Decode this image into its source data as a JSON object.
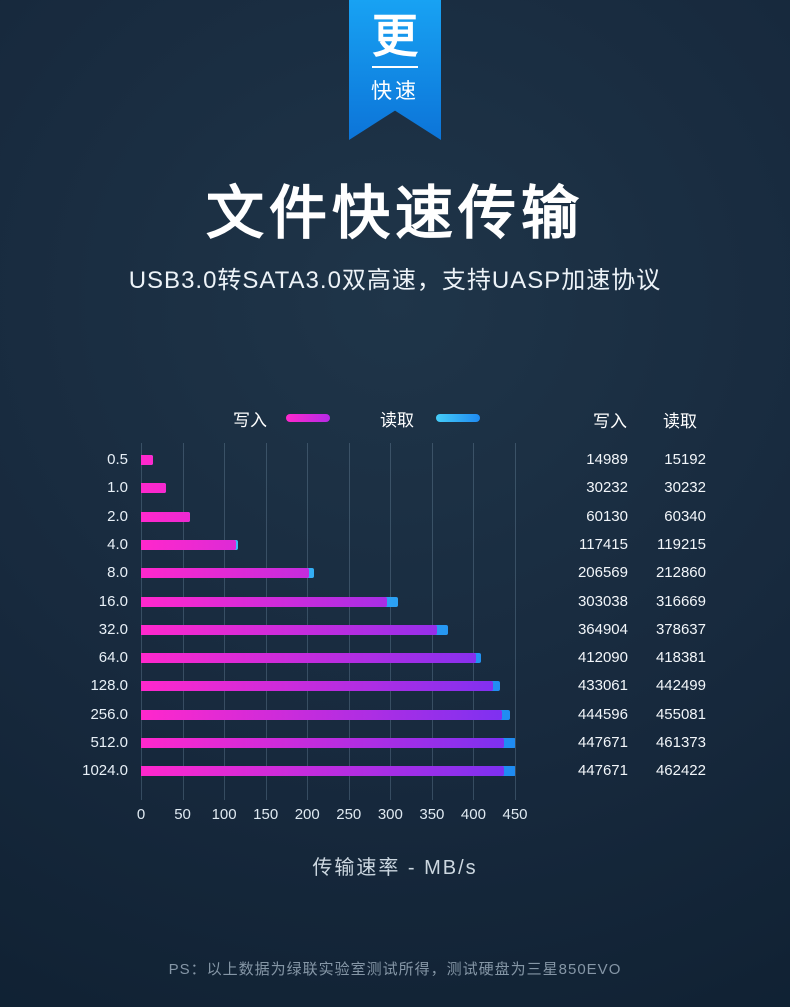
{
  "ribbon": {
    "big_char": "更",
    "small_label": "快速"
  },
  "header": {
    "title": "文件快速传输",
    "subtitle": "USB3.0转SATA3.0双高速，支持UASP加速协议"
  },
  "columns": {
    "write": "写入",
    "read": "读取"
  },
  "chart_data": {
    "type": "bar",
    "orientation": "horizontal",
    "categories": [
      "0.5",
      "1.0",
      "2.0",
      "4.0",
      "8.0",
      "16.0",
      "32.0",
      "64.0",
      "128.0",
      "256.0",
      "512.0",
      "1024.0"
    ],
    "series": [
      {
        "name": "写入",
        "color_start": "#ff28cc",
        "color_end": "#7a31f2",
        "values": [
          14989,
          30232,
          60130,
          117415,
          206569,
          303038,
          364904,
          412090,
          433061,
          444596,
          447671,
          447671
        ]
      },
      {
        "name": "读取",
        "color_start": "#45cdf8",
        "color_end": "#1f8bf2",
        "values": [
          15192,
          30232,
          60340,
          119215,
          212860,
          316669,
          378637,
          418381,
          442499,
          455081,
          461373,
          462422
        ]
      }
    ],
    "bar_unit_divisor": 1024,
    "x_ticks": [
      0,
      50,
      100,
      150,
      200,
      250,
      300,
      350,
      400,
      450
    ],
    "xlim": [
      0,
      450
    ],
    "xlabel": "传输速率 - MB/s",
    "grid": true,
    "legend_position": "top"
  },
  "footer": {
    "note": "PS：以上数据为绿联实验室测试所得，测试硬盘为三星850EVO"
  },
  "colors": {
    "background": "#16293c",
    "ribbon_top": "#18a2f3",
    "ribbon_bottom": "#0c74d8"
  }
}
